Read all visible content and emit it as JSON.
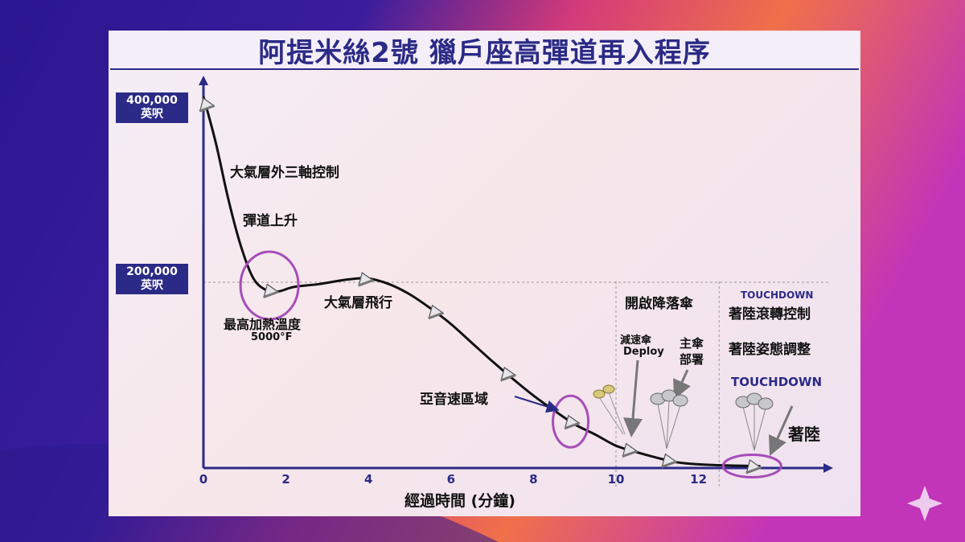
{
  "title": "阿提米絲2號 獵戶座高彈道再入程序",
  "y_ticks": [
    {
      "line1": "400,000",
      "line2": "英呎"
    },
    {
      "line1": "200,000",
      "line2": "英呎"
    }
  ],
  "colors": {
    "navy": "#2b2a86",
    "highlight_ring": "#a64db8",
    "trajectory": "#111111"
  },
  "chart_data": {
    "type": "line",
    "title": "阿提米絲2號 獵戶座高彈道再入程序",
    "xlabel": "經過時間 (分鐘)",
    "ylabel": "",
    "x_ticks": [
      "0",
      "2",
      "4",
      "6",
      "8",
      "10",
      "12"
    ],
    "xlim": [
      0,
      15.2
    ],
    "ylim": [
      0,
      420000
    ],
    "y_ticks": [
      200000,
      400000
    ],
    "grid": false,
    "phase_dividers_x": [
      10,
      12.5
    ],
    "reference_line_y": 200000,
    "series": [
      {
        "x": [
          0,
          0.3,
          0.6,
          0.9,
          1.2,
          1.5,
          1.8,
          2.2,
          2.8,
          3.5,
          4.0,
          4.5,
          5.0,
          5.5,
          6.0,
          6.5,
          7.0,
          7.5,
          8.0,
          8.5,
          9.0,
          9.5,
          10.0,
          10.5,
          11.0,
          11.5,
          12.0,
          12.5,
          13.0,
          13.5
        ],
        "y": [
          400000,
          350000,
          290000,
          240000,
          205000,
          192000,
          190000,
          195000,
          198000,
          203000,
          204000,
          198000,
          187000,
          172000,
          155000,
          135000,
          115000,
          96000,
          78000,
          62000,
          47000,
          36000,
          24000,
          17000,
          11000,
          6000,
          4000,
          3000,
          2500,
          2000
        ]
      }
    ],
    "capsule_markers_x": [
      0.05,
      1.6,
      3.9,
      5.6,
      7.35,
      8.9,
      10.3,
      11.25,
      13.3
    ],
    "highlight_rings_x": [
      1.6,
      8.9,
      13.3
    ],
    "annotations": [
      {
        "id": "exo",
        "text": "大氣層外三軸控制"
      },
      {
        "id": "skip",
        "text": "彈道上升"
      },
      {
        "id": "heat1",
        "text": "最高加熱溫度"
      },
      {
        "id": "heat2",
        "text": "5000°F"
      },
      {
        "id": "atmo",
        "text": "大氣層飛行"
      },
      {
        "id": "subsonic",
        "text": "亞音速區域"
      },
      {
        "id": "chutes",
        "text": "開啟降落傘"
      },
      {
        "id": "drogue1",
        "text": "減速傘"
      },
      {
        "id": "drogue2",
        "text": "Deploy"
      },
      {
        "id": "main1",
        "text": "主傘"
      },
      {
        "id": "main2",
        "text": "部署"
      },
      {
        "id": "td_small",
        "text": "TOUCHDOWN"
      },
      {
        "id": "roll",
        "text": "著陸滾轉控制"
      },
      {
        "id": "attitude",
        "text": "著陸姿態調整"
      },
      {
        "id": "td_big",
        "text": "TOUCHDOWN"
      },
      {
        "id": "landed",
        "text": "著陸"
      }
    ]
  }
}
